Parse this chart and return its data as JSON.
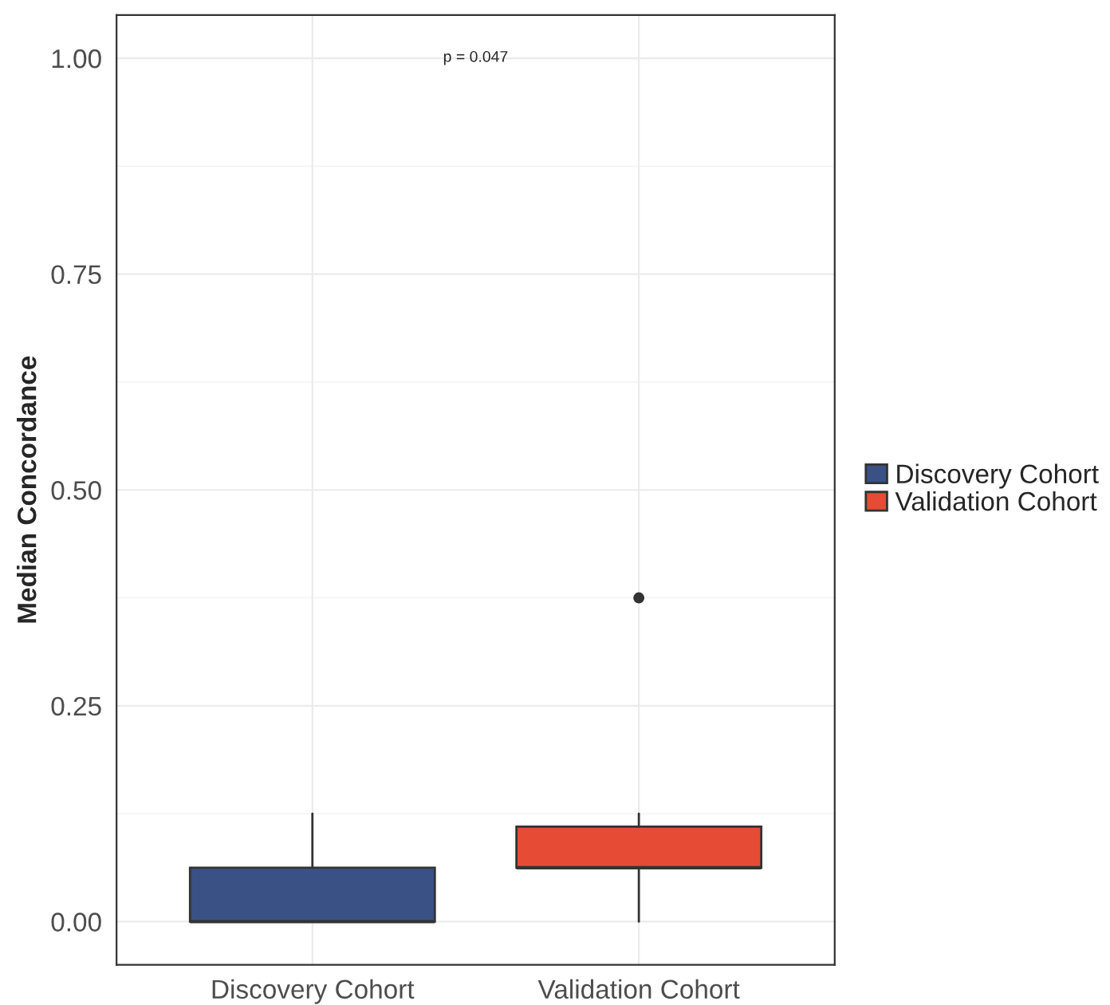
{
  "chart_data": {
    "type": "box",
    "ylabel": "Median Concordance",
    "categories": [
      "Discovery Cohort",
      "Validation Cohort"
    ],
    "series": [
      {
        "name": "Discovery Cohort",
        "color": "#3a5186",
        "boxes": [
          {
            "low": 0,
            "q1": 0,
            "median": 0,
            "q3": 0.0625,
            "high": 0.125
          },
          null
        ]
      },
      {
        "name": "Validation Cohort",
        "color": "#e64b35",
        "boxes": [
          null,
          {
            "low": 0,
            "q1": 0.0625,
            "median": 0.0625,
            "q3": 0.11,
            "high": 0.125,
            "outliers": [
              0.375
            ]
          }
        ]
      }
    ],
    "ylim": [
      -0.05,
      1.05
    ],
    "yticks": [
      {
        "value": 0,
        "label": "0.00"
      },
      {
        "value": 0.25,
        "label": "0.25"
      },
      {
        "value": 0.5,
        "label": "0.50"
      },
      {
        "value": 0.75,
        "label": "0.75"
      },
      {
        "value": 1,
        "label": "1.00"
      }
    ],
    "annotations": [
      "p = 0.047"
    ],
    "grid": true,
    "legend": "right"
  }
}
